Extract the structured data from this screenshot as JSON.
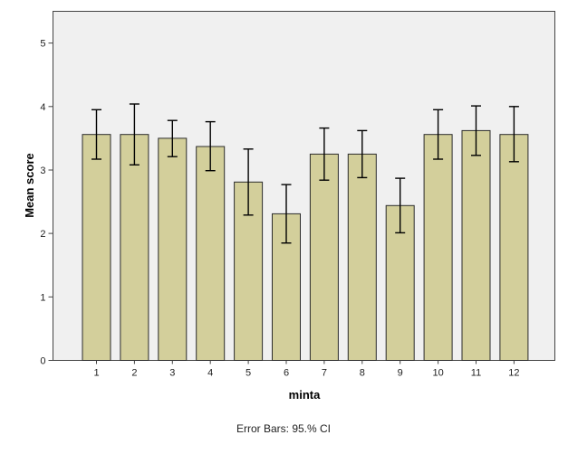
{
  "chart_data": {
    "type": "bar",
    "xlabel": "minta",
    "ylabel": "Mean score",
    "ylim": [
      0,
      5.5
    ],
    "yticks": [
      0,
      1,
      2,
      3,
      4,
      5
    ],
    "grid": false,
    "footnote": "Error Bars: 95.% CI",
    "categories": [
      "1",
      "2",
      "3",
      "4",
      "5",
      "6",
      "7",
      "8",
      "9",
      "10",
      "11",
      "12"
    ],
    "values": [
      3.56,
      3.56,
      3.5,
      3.37,
      2.81,
      2.31,
      3.25,
      3.25,
      2.44,
      3.56,
      3.62,
      3.56
    ],
    "error_low": [
      3.17,
      3.08,
      3.21,
      2.99,
      2.29,
      1.85,
      2.84,
      2.88,
      2.01,
      3.17,
      3.23,
      3.13
    ],
    "error_high": [
      3.95,
      4.04,
      3.78,
      3.76,
      3.33,
      2.77,
      3.66,
      3.62,
      2.87,
      3.95,
      4.01,
      4.0
    ],
    "colors": {
      "bar_fill": "#d3cf9b",
      "bar_stroke": "#2b2b2b",
      "plot_background": "#f0f0f0",
      "error_bar": "#000000"
    }
  }
}
